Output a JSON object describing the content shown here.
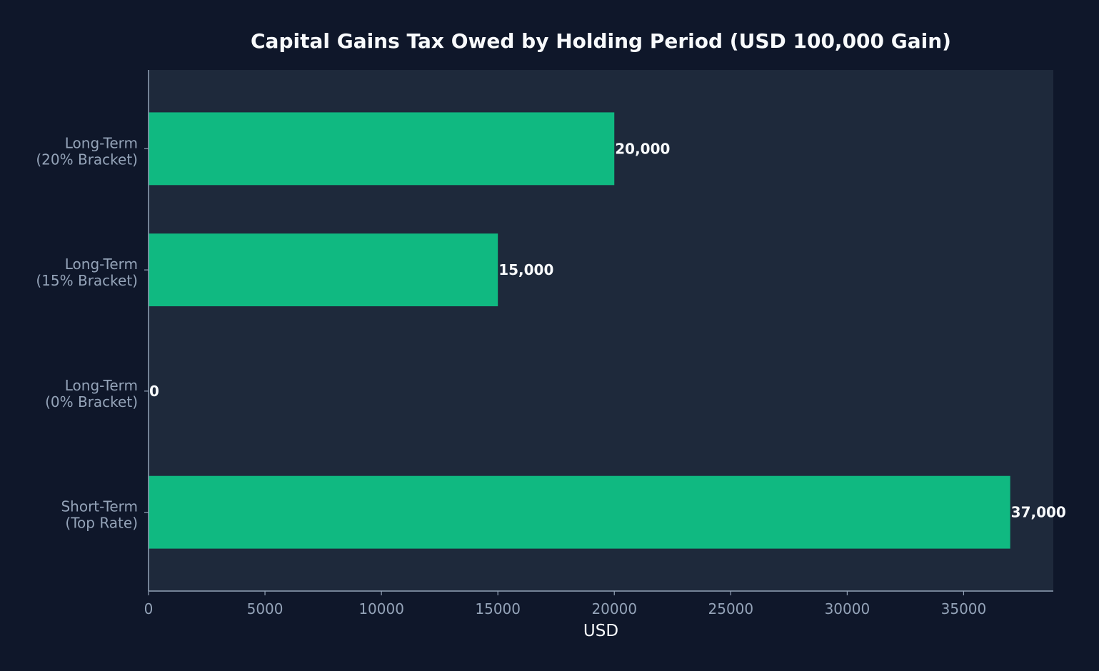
{
  "chart_data": {
    "type": "bar",
    "orientation": "horizontal",
    "title": "Capital Gains Tax Owed by Holding Period (USD 100,000 Gain)",
    "xlabel": "USD",
    "ylabel": "",
    "categories": [
      "Short-Term\n(Top Rate)",
      "Long-Term\n(0% Bracket)",
      "Long-Term\n(15% Bracket)",
      "Long-Term\n(20% Bracket)"
    ],
    "values": [
      37000,
      0,
      15000,
      20000
    ],
    "data_labels": [
      "37,000",
      "0",
      "15,000",
      "20,000"
    ],
    "xlim": [
      0,
      38850
    ],
    "xticks": [
      0,
      5000,
      10000,
      15000,
      20000,
      25000,
      30000,
      35000
    ],
    "xtick_labels": [
      "0",
      "5000",
      "10000",
      "15000",
      "20000",
      "25000",
      "30000",
      "35000"
    ],
    "grid": false,
    "legend": "none",
    "colors": {
      "page_background": "#0f172a",
      "plot_background": "#1e293b",
      "bar": "#10b981",
      "axis": "#94a3b8",
      "tick_text": "#94a3b8",
      "title_text": "#f8fafc",
      "label_text": "#f8fafc"
    }
  }
}
